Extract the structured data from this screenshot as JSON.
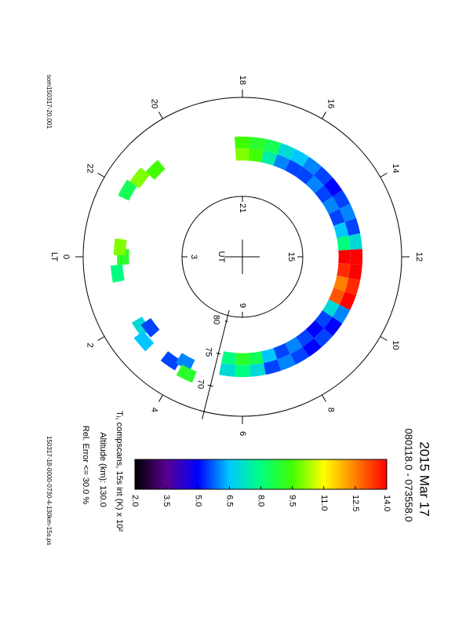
{
  "chart_data": {
    "type": "polar",
    "title": "2015 Mar 17",
    "subtitle": "080118.0 - 073558.0",
    "colorbar_label": "Tᵢ, compscans, 15s int (K) x 10²",
    "annotations": [
      "Altitude (km): 130.0",
      "Rel. Error <= 30.0 %"
    ],
    "footer_left": "som150317-20.001",
    "footer_right": "150317-18-0000-0730-4-130km-15s.ps",
    "theta_label": "LT",
    "inner_label": "UT",
    "xticks": [
      0,
      2,
      4,
      6,
      8,
      10,
      12,
      14,
      16,
      18,
      20,
      22
    ],
    "ut_ticks": [
      {
        "value": 18,
        "label": "21"
      },
      {
        "value": 12,
        "label": "15"
      },
      {
        "value": 6,
        "label": "9"
      },
      {
        "value": 0,
        "label": "3"
      }
    ],
    "rlim": [
      90,
      66
    ],
    "rticks": [
      80,
      75,
      70
    ],
    "clim": [
      2,
      14
    ],
    "cticks": [
      {
        "value": 2,
        "label": "2.0"
      },
      {
        "value": 3.5,
        "label": "3.5"
      },
      {
        "value": 5,
        "label": "5.0"
      },
      {
        "value": 6.5,
        "label": "6.5"
      },
      {
        "value": 8,
        "label": "8.0"
      },
      {
        "value": 9.5,
        "label": "9.5"
      },
      {
        "value": 11,
        "label": "11.0"
      },
      {
        "value": 12.5,
        "label": "12.5"
      },
      {
        "value": 14,
        "label": "14.0"
      }
    ],
    "colormap": [
      "#000000",
      "#5a0090",
      "#0000ff",
      "#00c8ff",
      "#00ff80",
      "#40ff00",
      "#ffff00",
      "#ff8000",
      "#ff0000"
    ],
    "x": [
      18,
      18,
      17.5,
      17.5,
      17,
      17,
      16.5,
      16.5,
      16,
      16,
      15.5,
      15.5,
      15,
      15,
      14.5,
      14.5,
      14,
      14,
      13.5,
      13.5,
      13,
      13,
      12.5,
      12.5,
      12,
      12,
      11.5,
      11.5,
      11,
      11,
      10.5,
      10.5,
      10,
      10,
      9.5,
      9.5,
      9,
      9,
      8.5,
      8.5,
      8,
      8,
      7.5,
      7.5,
      7,
      7,
      6.5,
      6.5,
      6,
      6,
      5.5,
      5.5,
      21.5,
      21,
      22,
      0,
      0.5,
      23.7,
      2.3,
      2.7,
      2.5,
      3.7,
      4.1,
      4.3
    ],
    "y": [
      72.8,
      74.6,
      72.8,
      74.6,
      72.8,
      74.6,
      72.8,
      74.6,
      72.8,
      74.6,
      72.8,
      74.6,
      72.8,
      74.6,
      72.8,
      74.6,
      72.8,
      74.6,
      72.8,
      74.6,
      72.8,
      74.6,
      72.8,
      74.6,
      72.8,
      74.6,
      72.8,
      74.6,
      72.8,
      74.6,
      72.8,
      74.6,
      72.8,
      74.6,
      72.8,
      74.6,
      72.8,
      74.6,
      72.8,
      74.6,
      72.8,
      74.6,
      72.8,
      74.6,
      72.8,
      74.6,
      72.8,
      74.6,
      72.8,
      74.6,
      72.8,
      74.6,
      70.5,
      71.5,
      70,
      72,
      71,
      71.5,
      71.5,
      70.5,
      72.5,
      71,
      72,
      70.5
    ],
    "values": [
      9.5,
      10,
      9,
      9.5,
      8.5,
      7.5,
      7,
      6,
      6.5,
      5.5,
      6,
      5.5,
      5.5,
      6,
      5,
      5.5,
      5.5,
      6,
      6,
      5.5,
      5.5,
      6.5,
      7,
      8,
      14,
      14,
      14,
      13.5,
      13.5,
      12.5,
      14,
      13,
      6,
      7,
      5,
      5.5,
      5.5,
      5,
      5,
      5.5,
      5.5,
      6,
      6,
      5.5,
      5.5,
      6.5,
      7,
      8.5,
      8,
      9,
      7,
      8,
      10,
      9.5,
      8.5,
      9,
      8,
      10,
      7,
      6.5,
      5.5,
      5.5,
      6,
      9
    ]
  }
}
